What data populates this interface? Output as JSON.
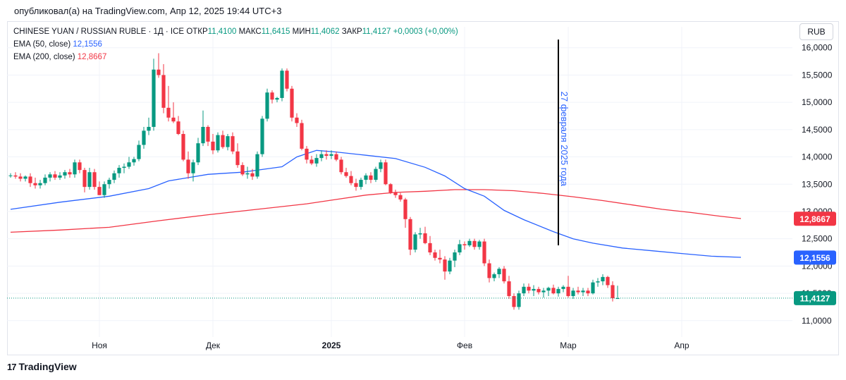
{
  "header": {
    "published": "опубликовал(а) на TradingView.com, Апр 12, 2025 19:44 UTC+3"
  },
  "legend": {
    "symbol": "CHINESE YUAN / RUSSIAN RUBLE · 1Д · ICE",
    "open_label": "ОТКР",
    "open": "11,4100",
    "high_label": "МАКС",
    "high": "11,6415",
    "low_label": "МИН",
    "low": "11,4062",
    "close_label": "ЗАКР",
    "close": "11,4127",
    "change": "+0,0003 (+0,00%)",
    "ema50_label": "EMA (50, close)",
    "ema50_value": "12,1556",
    "ema200_label": "EMA (200, close)",
    "ema200_value": "12,8667"
  },
  "currency_button": "RUB",
  "footer": {
    "brand": "TradingView",
    "logo_text": "17"
  },
  "colors": {
    "up": "#089981",
    "down": "#f23645",
    "ema50": "#2962ff",
    "ema200": "#f23645",
    "grid": "#f0f3fa",
    "annotation": "#2962ff"
  },
  "chart_data": {
    "type": "candlestick",
    "title": "CHINESE YUAN / RUSSIAN RUBLE · 1Д · ICE",
    "ylabel": "RUB",
    "ylim": [
      10.7,
      16.1
    ],
    "y_ticks": [
      11.0,
      11.5,
      12.0,
      12.5,
      13.0,
      13.5,
      14.0,
      14.5,
      15.0,
      15.5,
      16.0
    ],
    "y_tick_labels": [
      "11,0000",
      "11,5000",
      "12,0000",
      "12,5000",
      "13,0000",
      "13,5000",
      "14,0000",
      "14,5000",
      "15,0000",
      "15,5000",
      "16,0000"
    ],
    "x_ticks": [
      {
        "index": 18,
        "label": "Ноя"
      },
      {
        "index": 41,
        "label": "Дек"
      },
      {
        "index": 65,
        "label": "2025"
      },
      {
        "index": 92,
        "label": "Фев"
      },
      {
        "index": 113,
        "label": "Мар"
      },
      {
        "index": 136,
        "label": "Апр"
      }
    ],
    "candles": [
      [
        13.66,
        13.7,
        13.62,
        13.66
      ],
      [
        13.66,
        13.72,
        13.6,
        13.64
      ],
      [
        13.64,
        13.7,
        13.55,
        13.6
      ],
      [
        13.6,
        13.66,
        13.55,
        13.64
      ],
      [
        13.64,
        13.7,
        13.45,
        13.52
      ],
      [
        13.52,
        13.62,
        13.42,
        13.48
      ],
      [
        13.48,
        13.58,
        13.42,
        13.52
      ],
      [
        13.52,
        13.68,
        13.48,
        13.62
      ],
      [
        13.62,
        13.72,
        13.55,
        13.68
      ],
      [
        13.68,
        13.74,
        13.58,
        13.62
      ],
      [
        13.62,
        13.72,
        13.58,
        13.66
      ],
      [
        13.66,
        13.76,
        13.6,
        13.72
      ],
      [
        13.72,
        13.78,
        13.62,
        13.68
      ],
      [
        13.68,
        13.95,
        13.62,
        13.9
      ],
      [
        13.9,
        13.95,
        13.7,
        13.76
      ],
      [
        13.76,
        13.8,
        13.35,
        13.45
      ],
      [
        13.45,
        13.8,
        13.4,
        13.72
      ],
      [
        13.72,
        13.78,
        13.4,
        13.45
      ],
      [
        13.45,
        13.55,
        13.3,
        13.3
      ],
      [
        13.3,
        13.55,
        13.25,
        13.5
      ],
      [
        13.5,
        13.62,
        13.42,
        13.58
      ],
      [
        13.58,
        13.75,
        13.52,
        13.7
      ],
      [
        13.7,
        13.85,
        13.62,
        13.8
      ],
      [
        13.8,
        13.88,
        13.7,
        13.82
      ],
      [
        13.82,
        14.0,
        13.78,
        13.9
      ],
      [
        13.9,
        14.0,
        13.84,
        13.96
      ],
      [
        13.96,
        14.3,
        13.92,
        14.22
      ],
      [
        14.22,
        14.55,
        14.15,
        14.48
      ],
      [
        14.48,
        14.72,
        14.4,
        14.55
      ],
      [
        14.55,
        15.8,
        14.48,
        15.6
      ],
      [
        15.6,
        15.9,
        15.45,
        15.5
      ],
      [
        15.5,
        15.7,
        14.8,
        14.9
      ],
      [
        14.9,
        15.3,
        14.65,
        14.72
      ],
      [
        14.72,
        15.0,
        14.62,
        14.65
      ],
      [
        14.65,
        14.75,
        14.4,
        14.42
      ],
      [
        14.42,
        14.48,
        13.92,
        13.95
      ],
      [
        13.95,
        14.1,
        13.6,
        13.7
      ],
      [
        13.7,
        13.95,
        13.55,
        13.9
      ],
      [
        13.9,
        14.35,
        13.85,
        14.25
      ],
      [
        14.25,
        14.85,
        14.2,
        14.55
      ],
      [
        14.55,
        14.58,
        14.2,
        14.28
      ],
      [
        14.28,
        14.42,
        14.05,
        14.12
      ],
      [
        14.12,
        14.45,
        14.08,
        14.4
      ],
      [
        14.4,
        14.48,
        14.15,
        14.18
      ],
      [
        14.18,
        14.42,
        14.12,
        14.38
      ],
      [
        14.38,
        14.45,
        14.05,
        14.1
      ],
      [
        14.1,
        14.25,
        13.8,
        13.85
      ],
      [
        13.85,
        13.9,
        13.65,
        13.68
      ],
      [
        13.68,
        13.82,
        13.6,
        13.7
      ],
      [
        13.7,
        13.78,
        13.58,
        13.64
      ],
      [
        13.64,
        14.1,
        13.6,
        14.05
      ],
      [
        14.05,
        14.75,
        14.0,
        14.7
      ],
      [
        14.7,
        15.25,
        14.65,
        15.18
      ],
      [
        15.18,
        15.22,
        14.98,
        15.05
      ],
      [
        15.05,
        15.1,
        15.0,
        15.08
      ],
      [
        15.08,
        15.62,
        15.02,
        15.58
      ],
      [
        15.58,
        15.62,
        15.2,
        15.25
      ],
      [
        15.25,
        15.3,
        14.65,
        14.72
      ],
      [
        14.72,
        14.8,
        14.55,
        14.62
      ],
      [
        14.62,
        14.68,
        14.12,
        14.15
      ],
      [
        14.15,
        14.2,
        13.88,
        13.95
      ],
      [
        13.95,
        14.02,
        13.85,
        13.88
      ],
      [
        13.88,
        14.05,
        13.82,
        13.98
      ],
      [
        13.98,
        14.12,
        13.92,
        14.05
      ],
      [
        14.05,
        14.12,
        13.95,
        14.02
      ],
      [
        14.02,
        14.12,
        13.96,
        14.05
      ],
      [
        14.05,
        14.1,
        13.92,
        13.95
      ],
      [
        13.95,
        14.0,
        13.68,
        13.72
      ],
      [
        13.72,
        13.8,
        13.62,
        13.65
      ],
      [
        13.65,
        13.74,
        13.48,
        13.52
      ],
      [
        13.52,
        13.6,
        13.38,
        13.45
      ],
      [
        13.45,
        13.62,
        13.4,
        13.58
      ],
      [
        13.58,
        13.7,
        13.5,
        13.66
      ],
      [
        13.66,
        13.72,
        13.52,
        13.58
      ],
      [
        13.58,
        13.82,
        13.54,
        13.78
      ],
      [
        13.78,
        13.95,
        13.72,
        13.9
      ],
      [
        13.9,
        13.95,
        13.48,
        13.5
      ],
      [
        13.5,
        13.52,
        13.32,
        13.35
      ],
      [
        13.35,
        13.4,
        13.25,
        13.3
      ],
      [
        13.3,
        13.34,
        13.18,
        13.22
      ],
      [
        13.22,
        13.25,
        12.7,
        12.86
      ],
      [
        12.86,
        12.9,
        12.2,
        12.3
      ],
      [
        12.3,
        12.62,
        12.25,
        12.58
      ],
      [
        12.58,
        12.7,
        12.5,
        12.6
      ],
      [
        12.6,
        12.72,
        12.4,
        12.42
      ],
      [
        12.42,
        12.55,
        12.2,
        12.25
      ],
      [
        12.25,
        12.3,
        12.1,
        12.15
      ],
      [
        12.15,
        12.3,
        12.05,
        12.12
      ],
      [
        12.12,
        12.18,
        11.75,
        11.9
      ],
      [
        11.9,
        12.15,
        11.85,
        12.1
      ],
      [
        12.1,
        12.3,
        11.98,
        12.25
      ],
      [
        12.25,
        12.48,
        12.2,
        12.4
      ],
      [
        12.4,
        12.45,
        12.3,
        12.38
      ],
      [
        12.38,
        12.5,
        12.35,
        12.46
      ],
      [
        12.46,
        12.5,
        12.3,
        12.35
      ],
      [
        12.35,
        12.48,
        12.3,
        12.45
      ],
      [
        12.45,
        12.5,
        12.0,
        12.05
      ],
      [
        12.05,
        12.12,
        11.7,
        11.78
      ],
      [
        11.78,
        11.88,
        11.72,
        11.85
      ],
      [
        11.85,
        11.98,
        11.78,
        11.95
      ],
      [
        11.95,
        12.0,
        11.68,
        11.72
      ],
      [
        11.72,
        11.82,
        11.4,
        11.45
      ],
      [
        11.45,
        11.5,
        11.2,
        11.25
      ],
      [
        11.25,
        11.55,
        11.2,
        11.5
      ],
      [
        11.5,
        11.68,
        11.45,
        11.62
      ],
      [
        11.62,
        11.68,
        11.5,
        11.55
      ],
      [
        11.55,
        11.65,
        11.45,
        11.58
      ],
      [
        11.58,
        11.62,
        11.48,
        11.52
      ],
      [
        11.52,
        11.6,
        11.42,
        11.55
      ],
      [
        11.55,
        11.62,
        11.45,
        11.6
      ],
      [
        11.6,
        11.66,
        11.48,
        11.5
      ],
      [
        11.5,
        11.62,
        11.44,
        11.58
      ],
      [
        11.58,
        11.65,
        11.52,
        11.62
      ],
      [
        11.62,
        11.82,
        11.42,
        11.45
      ],
      [
        11.45,
        11.6,
        11.4,
        11.55
      ],
      [
        11.55,
        11.62,
        11.48,
        11.52
      ],
      [
        11.52,
        11.6,
        11.45,
        11.55
      ],
      [
        11.55,
        11.6,
        11.45,
        11.5
      ],
      [
        11.5,
        11.75,
        11.48,
        11.7
      ],
      [
        11.7,
        11.78,
        11.62,
        11.72
      ],
      [
        11.72,
        11.85,
        11.65,
        11.8
      ],
      [
        11.8,
        11.82,
        11.6,
        11.65
      ],
      [
        11.65,
        11.72,
        11.35,
        11.41
      ],
      [
        11.41,
        11.64,
        11.4,
        11.41
      ]
    ],
    "series": [
      {
        "name": "EMA (50, close)",
        "color": "#2962ff",
        "points": [
          [
            0,
            13.04
          ],
          [
            10,
            13.17
          ],
          [
            20,
            13.28
          ],
          [
            28,
            13.42
          ],
          [
            32,
            13.56
          ],
          [
            40,
            13.68
          ],
          [
            47,
            13.72
          ],
          [
            55,
            13.82
          ],
          [
            58,
            14.0
          ],
          [
            62,
            14.12
          ],
          [
            66,
            14.09
          ],
          [
            72,
            14.03
          ],
          [
            78,
            13.97
          ],
          [
            84,
            13.81
          ],
          [
            88,
            13.65
          ],
          [
            92,
            13.42
          ],
          [
            96,
            13.28
          ],
          [
            100,
            13.02
          ],
          [
            104,
            12.85
          ],
          [
            110,
            12.63
          ],
          [
            114,
            12.5
          ],
          [
            118,
            12.42
          ],
          [
            124,
            12.33
          ],
          [
            130,
            12.28
          ],
          [
            136,
            12.23
          ],
          [
            142,
            12.18
          ],
          [
            148,
            12.16
          ]
        ]
      },
      {
        "name": "EMA (200, close)",
        "color": "#f23645",
        "points": [
          [
            0,
            12.62
          ],
          [
            10,
            12.66
          ],
          [
            20,
            12.71
          ],
          [
            30,
            12.83
          ],
          [
            40,
            12.94
          ],
          [
            50,
            13.04
          ],
          [
            60,
            13.14
          ],
          [
            66,
            13.22
          ],
          [
            72,
            13.3
          ],
          [
            78,
            13.35
          ],
          [
            84,
            13.37
          ],
          [
            90,
            13.4
          ],
          [
            96,
            13.4
          ],
          [
            102,
            13.38
          ],
          [
            108,
            13.33
          ],
          [
            114,
            13.27
          ],
          [
            120,
            13.2
          ],
          [
            126,
            13.12
          ],
          [
            132,
            13.04
          ],
          [
            138,
            12.98
          ],
          [
            144,
            12.91
          ],
          [
            148,
            12.87
          ]
        ]
      }
    ],
    "annotation": {
      "label": "27 февраля 2025 года",
      "index": 111,
      "y_from": 12.38,
      "y_to": 16.15
    },
    "last_price": {
      "label": "11,4127",
      "value": 11.4127
    },
    "ema50_tag": {
      "label": "12,1556",
      "value": 12.1556
    },
    "ema200_tag": {
      "label": "12,8667",
      "value": 12.8667
    }
  }
}
